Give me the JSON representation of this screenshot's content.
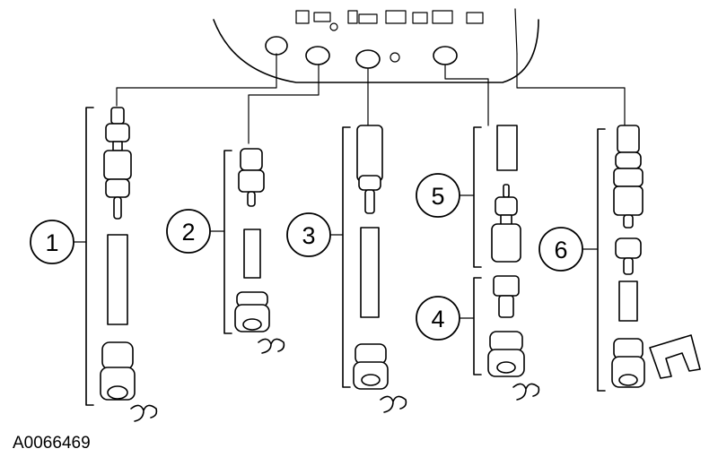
{
  "figure_id": "A0066469",
  "callouts": [
    "1",
    "2",
    "3",
    "4",
    "5",
    "6"
  ]
}
